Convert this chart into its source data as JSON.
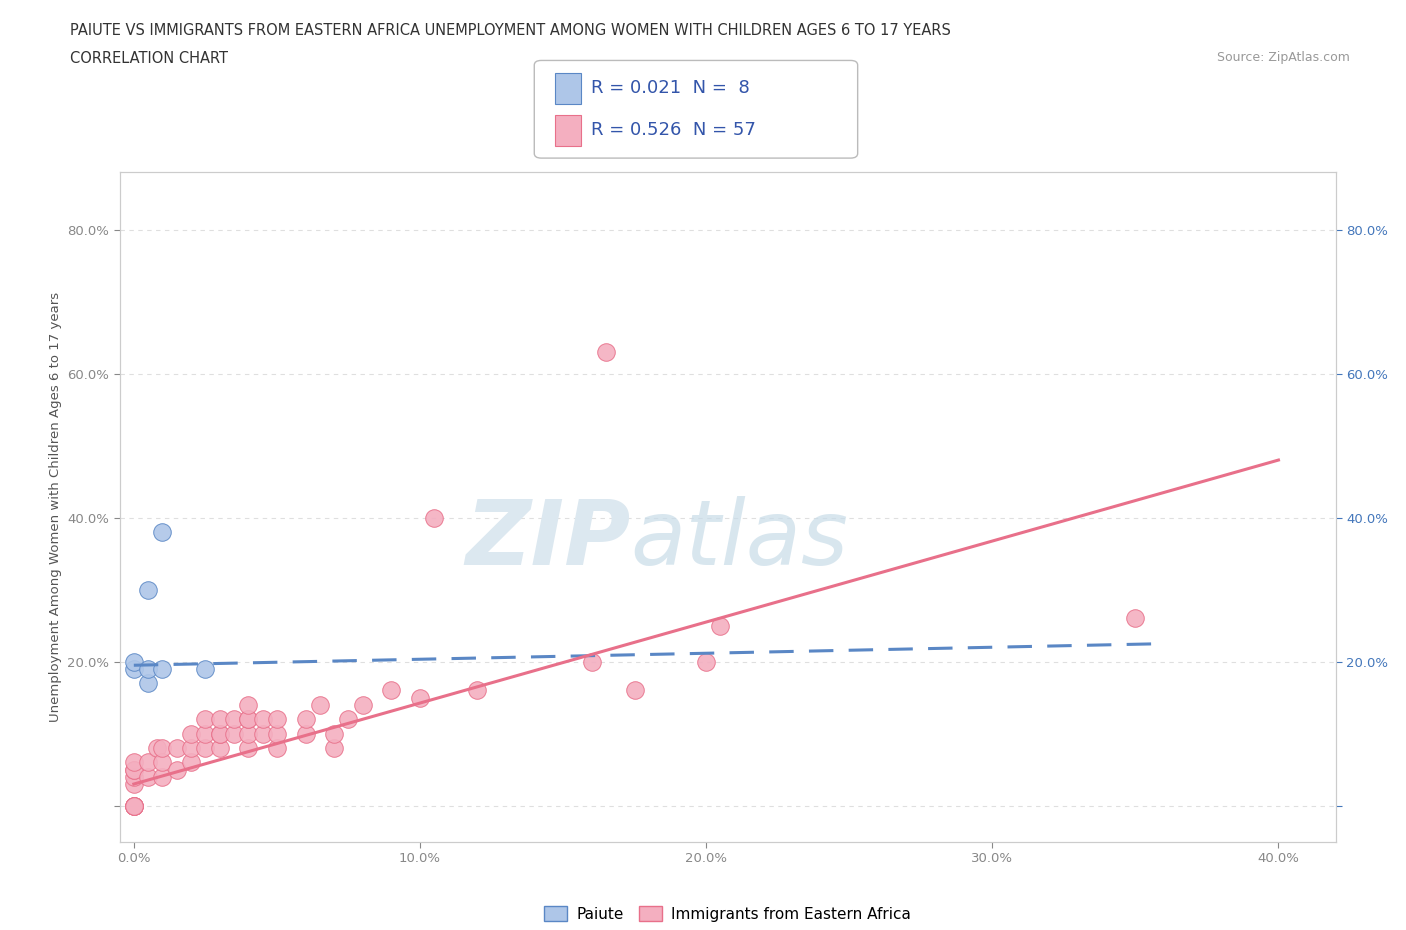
{
  "title_line1": "PAIUTE VS IMMIGRANTS FROM EASTERN AFRICA UNEMPLOYMENT AMONG WOMEN WITH CHILDREN AGES 6 TO 17 YEARS",
  "title_line2": "CORRELATION CHART",
  "source_text": "Source: ZipAtlas.com",
  "ylabel": "Unemployment Among Women with Children Ages 6 to 17 years",
  "xlim": [
    -0.005,
    0.42
  ],
  "ylim": [
    -0.05,
    0.88
  ],
  "xticks": [
    0.0,
    0.1,
    0.2,
    0.3,
    0.4
  ],
  "xticklabels": [
    "0.0%",
    "10.0%",
    "20.0%",
    "30.0%",
    "40.0%"
  ],
  "ytick_positions": [
    0.0,
    0.2,
    0.4,
    0.6,
    0.8
  ],
  "yticklabels_left": [
    "",
    "20.0%",
    "40.0%",
    "60.0%",
    "80.0%"
  ],
  "yticklabels_right": [
    "",
    "20.0%",
    "40.0%",
    "60.0%",
    "80.0%"
  ],
  "paiute_color": "#aec6e8",
  "eastern_africa_color": "#f4afc0",
  "paiute_line_color": "#5a87c5",
  "eastern_africa_line_color": "#e8708a",
  "paiute_scatter_x": [
    0.0,
    0.0,
    0.005,
    0.005,
    0.005,
    0.01,
    0.01,
    0.025
  ],
  "paiute_scatter_y": [
    0.19,
    0.2,
    0.3,
    0.17,
    0.19,
    0.38,
    0.19,
    0.19
  ],
  "eastern_africa_scatter_x": [
    0.0,
    0.0,
    0.0,
    0.0,
    0.0,
    0.0,
    0.0,
    0.0,
    0.0,
    0.0,
    0.005,
    0.005,
    0.008,
    0.01,
    0.01,
    0.01,
    0.015,
    0.015,
    0.02,
    0.02,
    0.02,
    0.025,
    0.025,
    0.025,
    0.03,
    0.03,
    0.03,
    0.03,
    0.035,
    0.035,
    0.04,
    0.04,
    0.04,
    0.04,
    0.04,
    0.045,
    0.045,
    0.05,
    0.05,
    0.05,
    0.06,
    0.06,
    0.065,
    0.07,
    0.07,
    0.075,
    0.08,
    0.09,
    0.1,
    0.105,
    0.12,
    0.16,
    0.165,
    0.175,
    0.2,
    0.205,
    0.35
  ],
  "eastern_africa_scatter_y": [
    0.0,
    0.0,
    0.0,
    0.0,
    0.0,
    0.03,
    0.04,
    0.05,
    0.05,
    0.06,
    0.04,
    0.06,
    0.08,
    0.04,
    0.06,
    0.08,
    0.05,
    0.08,
    0.06,
    0.08,
    0.1,
    0.08,
    0.1,
    0.12,
    0.08,
    0.1,
    0.1,
    0.12,
    0.1,
    0.12,
    0.08,
    0.1,
    0.12,
    0.12,
    0.14,
    0.1,
    0.12,
    0.08,
    0.1,
    0.12,
    0.1,
    0.12,
    0.14,
    0.08,
    0.1,
    0.12,
    0.14,
    0.16,
    0.15,
    0.4,
    0.16,
    0.2,
    0.63,
    0.16,
    0.2,
    0.25,
    0.26
  ],
  "background_color": "#ffffff",
  "grid_color": "#d8d8d8",
  "watermark_color": "#dce8f0",
  "paiute_line_x": [
    0.0,
    0.36
  ],
  "paiute_line_y": [
    0.195,
    0.225
  ],
  "ea_line_x": [
    0.0,
    0.4
  ],
  "ea_line_y": [
    0.03,
    0.48
  ]
}
